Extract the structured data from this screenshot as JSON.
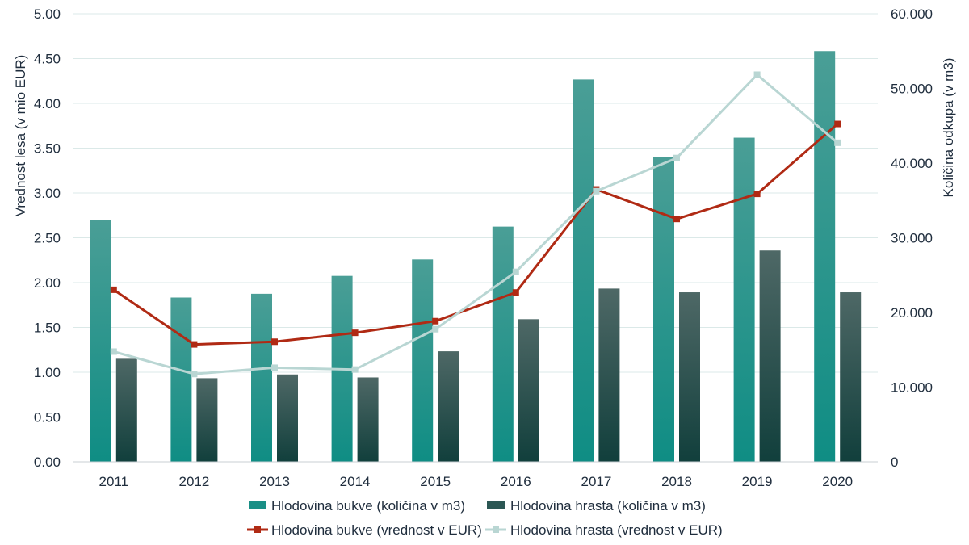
{
  "chart_data": {
    "type": "bar",
    "categories": [
      "2011",
      "2012",
      "2013",
      "2014",
      "2015",
      "2016",
      "2017",
      "2018",
      "2019",
      "2020"
    ],
    "left_axis": {
      "label": "Vrednost lesa (v mio EUR)",
      "range": [
        0,
        5
      ],
      "ticks": [
        "0.00",
        "0.50",
        "1.00",
        "1.50",
        "2.00",
        "2.50",
        "3.00",
        "3.50",
        "4.00",
        "4.50",
        "5.00"
      ]
    },
    "right_axis": {
      "label": "Količina odkupa (v m3)",
      "range": [
        0,
        60000
      ],
      "ticks": [
        "0",
        "10.000",
        "20.000",
        "30.000",
        "40.000",
        "50.000",
        "60.000"
      ]
    },
    "series": [
      {
        "name": "Hlodovina bukve (količina v m3)",
        "kind": "bar",
        "axis": "right",
        "color": "#1a8f86",
        "values": [
          32400,
          22000,
          22500,
          24900,
          27100,
          31500,
          51200,
          40800,
          43400,
          55000
        ]
      },
      {
        "name": "Hlodovina hrasta (količina v m3)",
        "kind": "bar",
        "axis": "right",
        "color": "#2b5754",
        "values": [
          13800,
          11200,
          11700,
          11300,
          14800,
          19100,
          23200,
          22700,
          28300,
          22700
        ]
      },
      {
        "name": "Hlodovina bukve (vrednost v EUR)",
        "kind": "line",
        "axis": "left",
        "color": "#b02a14",
        "values": [
          1.92,
          1.31,
          1.34,
          1.44,
          1.57,
          1.89,
          3.04,
          2.71,
          2.99,
          3.77
        ]
      },
      {
        "name": "Hlodovina hrasta (vrednost v EUR)",
        "kind": "line",
        "axis": "left",
        "color": "#b9d6d3",
        "values": [
          1.23,
          0.98,
          1.05,
          1.03,
          1.48,
          2.12,
          3.02,
          3.39,
          4.32,
          3.56
        ]
      }
    ],
    "grid": true,
    "legend_position": "bottom"
  }
}
